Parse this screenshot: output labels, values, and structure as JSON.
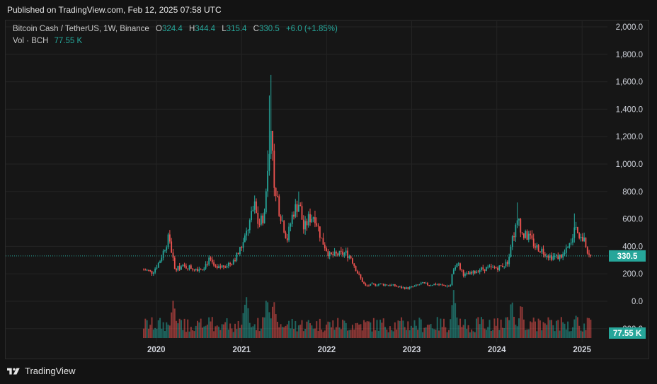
{
  "header": {
    "published": "Published on TradingView.com, Feb 12, 2025 07:58 UTC"
  },
  "legend": {
    "symbol": "Bitcoin Cash / TetherUS, 1W, Binance",
    "o_label": "O",
    "o_value": "324.4",
    "h_label": "H",
    "h_value": "344.4",
    "l_label": "L",
    "l_value": "315.4",
    "c_label": "C",
    "c_value": "330.5",
    "change": "+6.0 (+1.85%)",
    "volume_label": "Vol · BCH",
    "volume_value": "77.55 K"
  },
  "footer": {
    "brand": "TradingView",
    "logo_icon": "tradingview-logo-icon"
  },
  "colors": {
    "up": "#26a69a",
    "down": "#ef5350",
    "grid": "#242424",
    "axis_text": "#d1d4dc",
    "price_line": "#26a69a"
  },
  "chart_data": {
    "type": "candlestick",
    "interval": "1W",
    "yaxis_ticks": [
      "2,000.0",
      "1,800.0",
      "1,600.0",
      "1,400.0",
      "1,200.0",
      "1,000.0",
      "800.0",
      "600.0",
      "400.0",
      "200.0",
      "0.0",
      "-200.0"
    ],
    "ylim": [
      -200,
      2000
    ],
    "xaxis_ticks": [
      "2020",
      "2021",
      "2022",
      "2023",
      "2024",
      "2025"
    ],
    "last_price_label": "330.5",
    "last_volume_label": "77.55 K",
    "last_price": 330.5,
    "grid": true,
    "close_path": [
      [
        "2019-11-15",
        230
      ],
      [
        "2019-12-15",
        210
      ],
      [
        "2020-01-15",
        290
      ],
      [
        "2020-02-15",
        430
      ],
      [
        "2020-02-25",
        470
      ],
      [
        "2020-03-10",
        330
      ],
      [
        "2020-03-20",
        230
      ],
      [
        "2020-04-15",
        250
      ],
      [
        "2020-05-15",
        250
      ],
      [
        "2020-06-15",
        240
      ],
      [
        "2020-07-15",
        240
      ],
      [
        "2020-08-15",
        300
      ],
      [
        "2020-09-15",
        230
      ],
      [
        "2020-10-15",
        260
      ],
      [
        "2020-11-15",
        280
      ],
      [
        "2020-12-15",
        340
      ],
      [
        "2021-01-10",
        430
      ],
      [
        "2021-02-10",
        600
      ],
      [
        "2021-02-25",
        700
      ],
      [
        "2021-03-15",
        550
      ],
      [
        "2021-04-10",
        640
      ],
      [
        "2021-04-25",
        1050
      ],
      [
        "2021-05-10",
        1400
      ],
      [
        "2021-05-20",
        800
      ],
      [
        "2021-06-15",
        650
      ],
      [
        "2021-07-15",
        450
      ],
      [
        "2021-08-10",
        650
      ],
      [
        "2021-09-05",
        720
      ],
      [
        "2021-09-25",
        520
      ],
      [
        "2021-10-15",
        600
      ],
      [
        "2021-11-10",
        630
      ],
      [
        "2021-12-10",
        450
      ],
      [
        "2022-01-15",
        330
      ],
      [
        "2022-02-15",
        340
      ],
      [
        "2022-03-25",
        350
      ],
      [
        "2022-04-15",
        320
      ],
      [
        "2022-05-15",
        200
      ],
      [
        "2022-06-15",
        110
      ],
      [
        "2022-07-15",
        120
      ],
      [
        "2022-08-15",
        125
      ],
      [
        "2022-09-15",
        120
      ],
      [
        "2022-10-15",
        115
      ],
      [
        "2022-11-15",
        100
      ],
      [
        "2022-12-15",
        95
      ],
      [
        "2023-01-15",
        110
      ],
      [
        "2023-02-15",
        130
      ],
      [
        "2023-03-15",
        120
      ],
      [
        "2023-04-15",
        125
      ],
      [
        "2023-05-15",
        115
      ],
      [
        "2023-06-15",
        110
      ],
      [
        "2023-06-30",
        250
      ],
      [
        "2023-07-15",
        280
      ],
      [
        "2023-08-15",
        190
      ],
      [
        "2023-09-15",
        200
      ],
      [
        "2023-10-15",
        230
      ],
      [
        "2023-11-15",
        240
      ],
      [
        "2023-12-15",
        240
      ],
      [
        "2024-01-15",
        250
      ],
      [
        "2024-02-15",
        280
      ],
      [
        "2024-03-05",
        450
      ],
      [
        "2024-04-05",
        600
      ],
      [
        "2024-04-20",
        480
      ],
      [
        "2024-05-15",
        470
      ],
      [
        "2024-06-15",
        400
      ],
      [
        "2024-07-15",
        370
      ],
      [
        "2024-08-15",
        330
      ],
      [
        "2024-09-15",
        320
      ],
      [
        "2024-10-15",
        340
      ],
      [
        "2024-11-15",
        420
      ],
      [
        "2024-12-05",
        580
      ],
      [
        "2024-12-20",
        470
      ],
      [
        "2025-01-15",
        430
      ],
      [
        "2025-02-01",
        310
      ],
      [
        "2025-02-12",
        330.5
      ]
    ],
    "volume_peaks": [
      [
        "2020-03-15",
        500
      ],
      [
        "2021-01-20",
        600
      ],
      [
        "2021-04-20",
        580
      ],
      [
        "2021-05-20",
        500
      ],
      [
        "2023-06-30",
        610
      ],
      [
        "2024-03-05",
        500
      ],
      [
        "2024-04-15",
        440
      ],
      [
        "2024-12-05",
        330
      ]
    ]
  }
}
